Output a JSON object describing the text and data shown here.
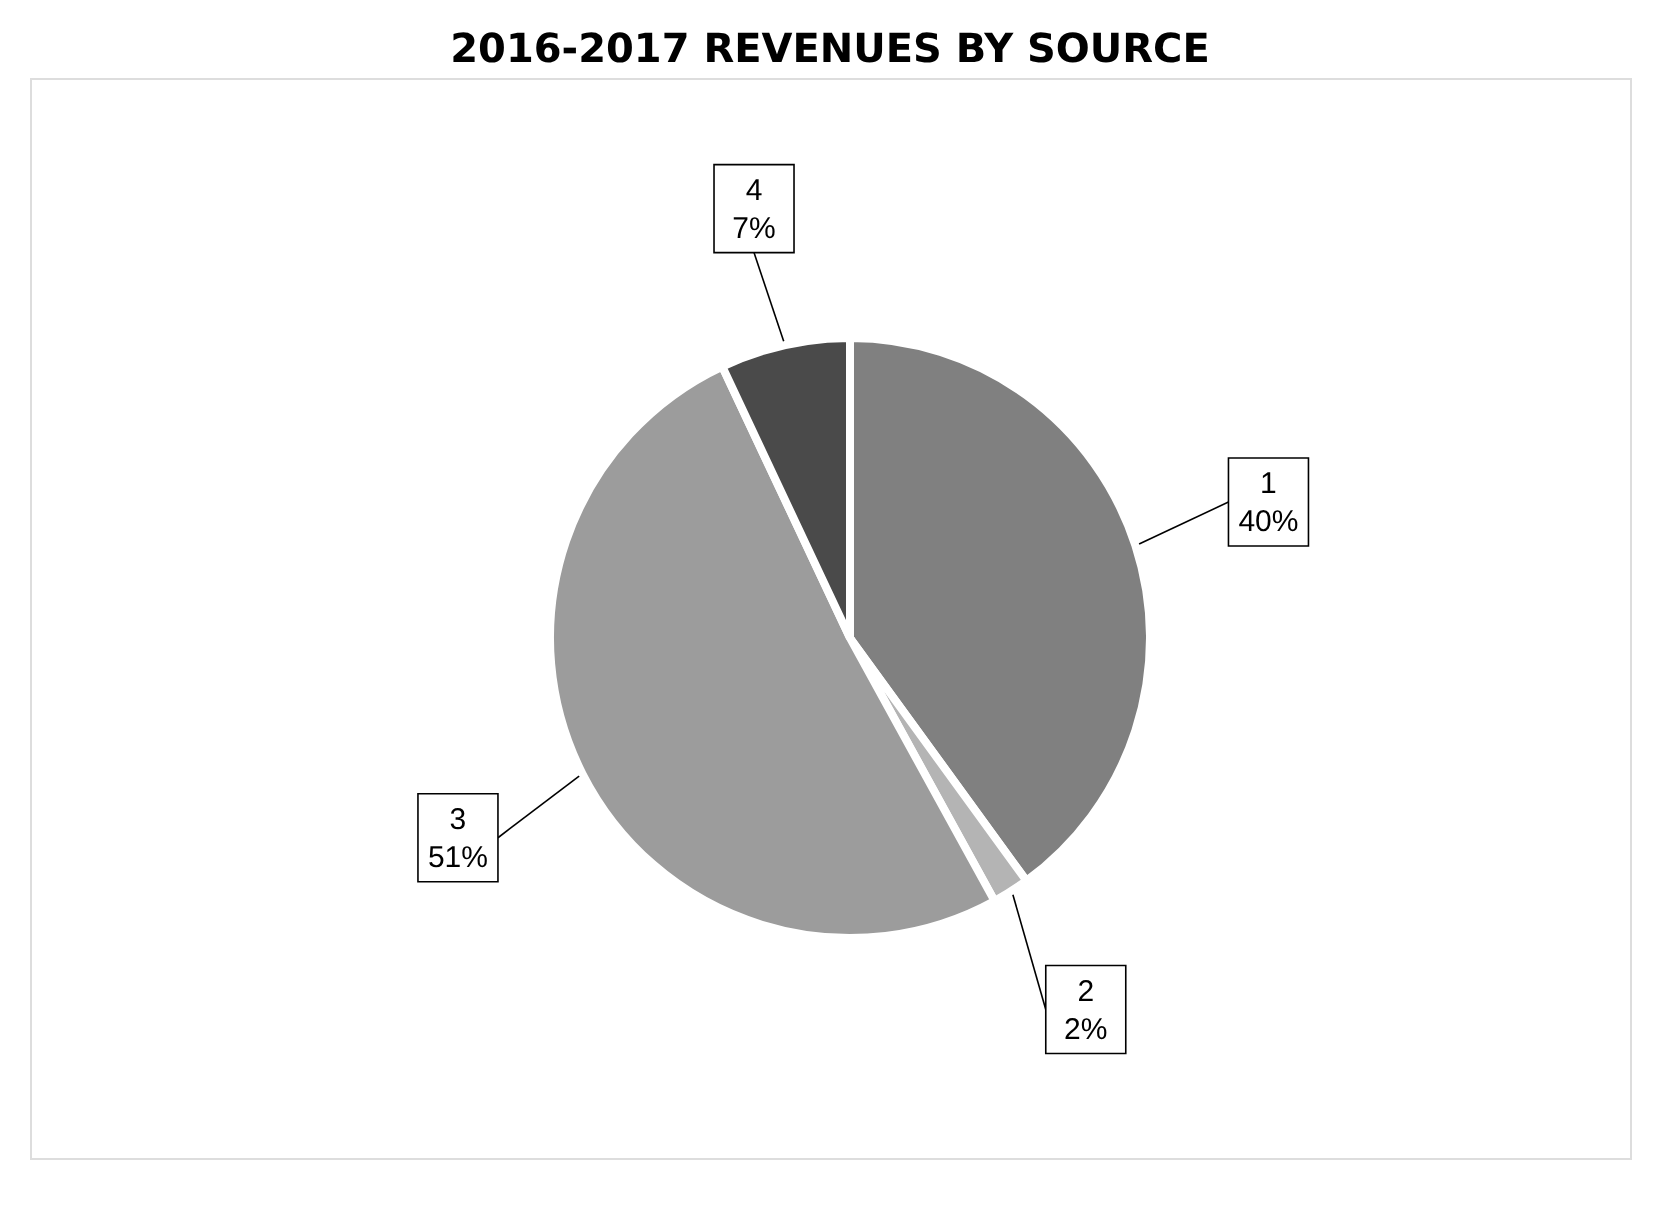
{
  "chart_data": {
    "type": "pie",
    "title": "2016-2017 REVENUES BY SOURCE",
    "categories": [
      "1",
      "2",
      "3",
      "4"
    ],
    "values": [
      40,
      2,
      51,
      7
    ],
    "colors": [
      "#808080",
      "#b4b4b4",
      "#9c9c9c",
      "#4a4a4a"
    ],
    "value_labels": [
      "40%",
      "2%",
      "51%",
      "7%"
    ]
  }
}
